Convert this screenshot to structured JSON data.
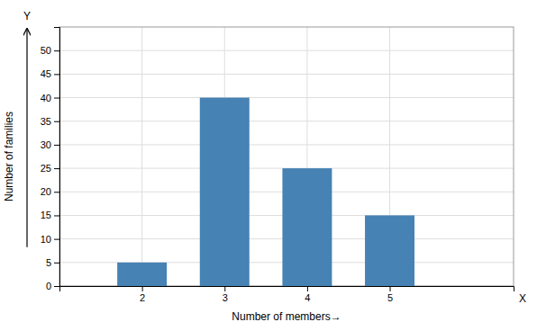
{
  "chart_data": {
    "type": "bar",
    "x": [
      2,
      3,
      4,
      5
    ],
    "values": [
      5,
      40,
      25,
      15
    ],
    "xlabel": "Number of members→",
    "ylabel": "Number of families",
    "xlim": [
      1.0,
      6.5
    ],
    "xticks": [
      2,
      3,
      4,
      5
    ],
    "ylim": [
      0,
      55
    ],
    "yticks": [
      0,
      5,
      10,
      15,
      20,
      25,
      30,
      35,
      40,
      45,
      50
    ],
    "grid": true,
    "annotations": [
      "Y",
      "X"
    ]
  }
}
